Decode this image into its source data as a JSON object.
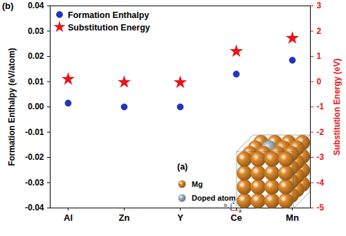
{
  "chart_data": {
    "type": "scatter",
    "panel_label": "(b)",
    "categories": [
      "Al",
      "Zn",
      "Y",
      "Ce",
      "Mn"
    ],
    "series": [
      {
        "name": "Formation Enthalpy",
        "color": "#1f35c8",
        "marker": "circle",
        "values": [
          0.0015,
          0.0,
          0.0,
          0.013,
          0.0185
        ]
      },
      {
        "name": "Substitution Energy",
        "color": "#e8141c",
        "marker": "star",
        "axis": "y2",
        "values": [
          0.1,
          -0.02,
          -0.03,
          1.2,
          1.72
        ]
      }
    ],
    "ylabel": "Formation Enthalpy (eV/atom)",
    "y2label": "Substitution Energy (eV)",
    "ylim": [
      -0.04,
      0.04
    ],
    "yticks": [
      -0.04,
      -0.03,
      -0.02,
      -0.01,
      {
        "value": 0,
        "label": "0.00"
      },
      0.01,
      0.02,
      0.03,
      0.04
    ],
    "y2lim": [
      -5,
      3
    ],
    "y2ticks": [
      -5,
      -4,
      -3,
      -2,
      -1,
      0,
      1,
      2,
      3
    ],
    "legend": "upper left",
    "inset": {
      "label": "(a)",
      "legend": [
        {
          "name": "Mg",
          "color": "#e08a2a"
        },
        {
          "name": "Doped atom",
          "color": "#9fb4c4"
        }
      ],
      "axis_letters": [
        "b",
        "c",
        "a"
      ]
    }
  }
}
